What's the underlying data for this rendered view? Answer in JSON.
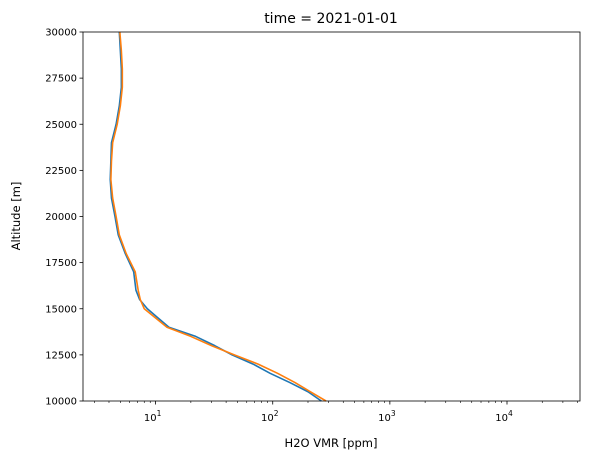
{
  "chart_data": {
    "type": "line",
    "title": "time = 2021-01-01",
    "xlabel": "H2O VMR [ppm]",
    "ylabel": "Altitude [m]",
    "xscale": "log",
    "xlim": [
      2.4,
      42000
    ],
    "ylim": [
      10000,
      30000
    ],
    "grid": false,
    "legend": "none",
    "x_ticks": [
      {
        "value": 10,
        "base": "10",
        "exp": "1"
      },
      {
        "value": 100,
        "base": "10",
        "exp": "2"
      },
      {
        "value": 1000,
        "base": "10",
        "exp": "3"
      },
      {
        "value": 10000,
        "base": "10",
        "exp": "4"
      }
    ],
    "y_ticks": [
      {
        "value": 10000,
        "label": "10000"
      },
      {
        "value": 12500,
        "label": "12500"
      },
      {
        "value": 15000,
        "label": "15000"
      },
      {
        "value": 17500,
        "label": "17500"
      },
      {
        "value": 20000,
        "label": "20000"
      },
      {
        "value": 22500,
        "label": "22500"
      },
      {
        "value": 25000,
        "label": "25000"
      },
      {
        "value": 27500,
        "label": "27500"
      },
      {
        "value": 30000,
        "label": "30000"
      }
    ],
    "series": [
      {
        "color": "#1f77b4",
        "points": [
          [
            260,
            10000
          ],
          [
            200,
            10500
          ],
          [
            140,
            11000
          ],
          [
            95,
            11500
          ],
          [
            68,
            12000
          ],
          [
            45,
            12500
          ],
          [
            32,
            13000
          ],
          [
            22,
            13500
          ],
          [
            13,
            14000
          ],
          [
            10.5,
            14500
          ],
          [
            8.5,
            15000
          ],
          [
            7.3,
            15500
          ],
          [
            6.8,
            16000
          ],
          [
            6.5,
            17000
          ],
          [
            5.5,
            18000
          ],
          [
            4.8,
            19000
          ],
          [
            4.5,
            20000
          ],
          [
            4.2,
            21000
          ],
          [
            4.1,
            22000
          ],
          [
            4.15,
            23000
          ],
          [
            4.2,
            24000
          ],
          [
            4.6,
            25000
          ],
          [
            4.9,
            26000
          ],
          [
            5.1,
            27000
          ],
          [
            5.1,
            28000
          ],
          [
            5.0,
            29000
          ],
          [
            4.9,
            30000
          ]
        ]
      },
      {
        "color": "#ff7f0e",
        "points": [
          [
            285,
            10000
          ],
          [
            210,
            10500
          ],
          [
            155,
            11000
          ],
          [
            110,
            11500
          ],
          [
            75,
            12000
          ],
          [
            47,
            12500
          ],
          [
            30,
            13000
          ],
          [
            20,
            13500
          ],
          [
            12.5,
            14000
          ],
          [
            10,
            14500
          ],
          [
            8,
            15000
          ],
          [
            7.4,
            15500
          ],
          [
            7.1,
            16000
          ],
          [
            6.7,
            17000
          ],
          [
            5.6,
            18000
          ],
          [
            4.9,
            19000
          ],
          [
            4.6,
            20000
          ],
          [
            4.3,
            21000
          ],
          [
            4.15,
            22000
          ],
          [
            4.2,
            23000
          ],
          [
            4.3,
            24000
          ],
          [
            4.7,
            25000
          ],
          [
            5.0,
            26000
          ],
          [
            5.2,
            27000
          ],
          [
            5.2,
            28000
          ],
          [
            5.1,
            29000
          ],
          [
            4.95,
            30000
          ]
        ]
      }
    ]
  }
}
